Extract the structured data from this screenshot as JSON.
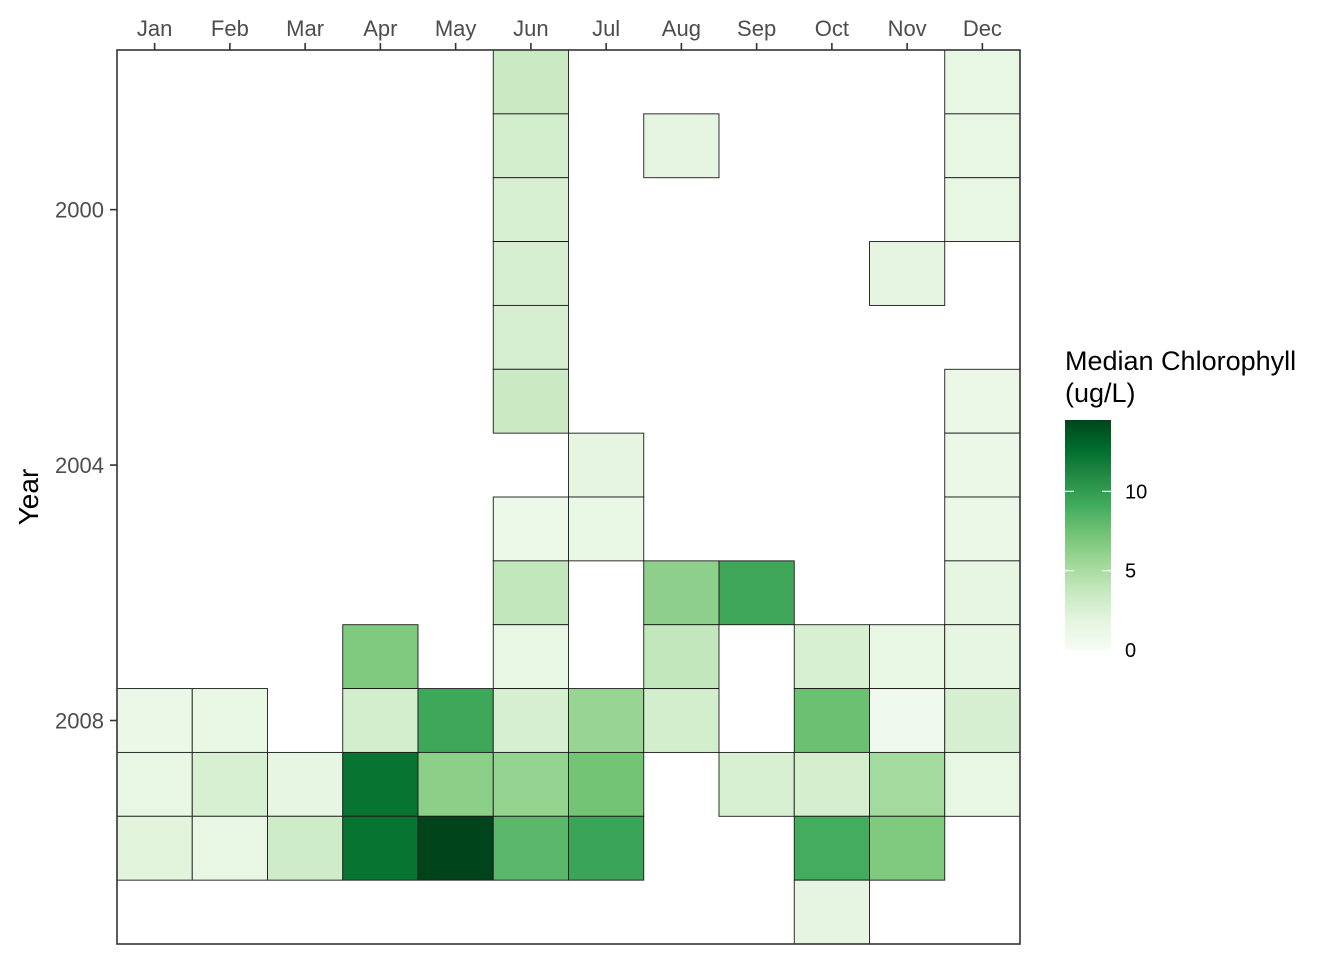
{
  "chart_data": {
    "type": "heatmap",
    "title": "",
    "xlabel": "",
    "ylabel": "Year",
    "x_axis_position": "top",
    "categories": [
      "Jan",
      "Feb",
      "Mar",
      "Apr",
      "May",
      "Jun",
      "Jul",
      "Aug",
      "Sep",
      "Oct",
      "Nov",
      "Dec"
    ],
    "y_range": [
      1997.5,
      2011.5
    ],
    "y_reversed": true,
    "y_ticks": [
      2000,
      2004,
      2008
    ],
    "grid": false,
    "legend": {
      "title_lines": [
        "Median Chlorophyll",
        "(ug/L)"
      ],
      "ticks": [
        0,
        5,
        10
      ],
      "range": [
        0,
        14.5
      ],
      "placement": "right",
      "low_color": "#f7fcf5",
      "high_color": "#00441b"
    },
    "colorscale": [
      {
        "v": 0,
        "c": "#f7fcf5"
      },
      {
        "v": 1.8,
        "c": "#e5f5e0"
      },
      {
        "v": 3.6,
        "c": "#c7e9c0"
      },
      {
        "v": 5.4,
        "c": "#a1d99b"
      },
      {
        "v": 7.3,
        "c": "#74c476"
      },
      {
        "v": 9.1,
        "c": "#41ab5d"
      },
      {
        "v": 10.9,
        "c": "#238b45"
      },
      {
        "v": 12.7,
        "c": "#006d2c"
      },
      {
        "v": 14.5,
        "c": "#00441b"
      }
    ],
    "cells": [
      {
        "month": "Jun",
        "year": 1998,
        "value": 3.5
      },
      {
        "month": "Dec",
        "year": 1998,
        "value": 1.5
      },
      {
        "month": "Jun",
        "year": 1999,
        "value": 2.9
      },
      {
        "month": "Aug",
        "year": 1999,
        "value": 1.7
      },
      {
        "month": "Dec",
        "year": 1999,
        "value": 1.5
      },
      {
        "month": "Jun",
        "year": 2000,
        "value": 2.6
      },
      {
        "month": "Dec",
        "year": 2000,
        "value": 1.5
      },
      {
        "month": "Jun",
        "year": 2001,
        "value": 2.7
      },
      {
        "month": "Nov",
        "year": 2001,
        "value": 1.8
      },
      {
        "month": "Jun",
        "year": 2002,
        "value": 2.7
      },
      {
        "month": "Jun",
        "year": 2003,
        "value": 3.4
      },
      {
        "month": "Dec",
        "year": 2003,
        "value": 1.2
      },
      {
        "month": "Jul",
        "year": 2004,
        "value": 1.8
      },
      {
        "month": "Dec",
        "year": 2004,
        "value": 1.2
      },
      {
        "month": "Jun",
        "year": 2005,
        "value": 1.1
      },
      {
        "month": "Jul",
        "year": 2005,
        "value": 1.4
      },
      {
        "month": "Dec",
        "year": 2005,
        "value": 1.2
      },
      {
        "month": "Jun",
        "year": 2006,
        "value": 3.8
      },
      {
        "month": "Aug",
        "year": 2006,
        "value": 6.2
      },
      {
        "month": "Sep",
        "year": 2006,
        "value": 9.3
      },
      {
        "month": "Dec",
        "year": 2006,
        "value": 1.6
      },
      {
        "month": "Apr",
        "year": 2007,
        "value": 6.8
      },
      {
        "month": "Jun",
        "year": 2007,
        "value": 1.5
      },
      {
        "month": "Aug",
        "year": 2007,
        "value": 3.8
      },
      {
        "month": "Oct",
        "year": 2007,
        "value": 2.6
      },
      {
        "month": "Nov",
        "year": 2007,
        "value": 1.5
      },
      {
        "month": "Dec",
        "year": 2007,
        "value": 1.6
      },
      {
        "month": "Jan",
        "year": 2008,
        "value": 1.2
      },
      {
        "month": "Feb",
        "year": 2008,
        "value": 1.4
      },
      {
        "month": "Apr",
        "year": 2008,
        "value": 2.9
      },
      {
        "month": "May",
        "year": 2008,
        "value": 9.3
      },
      {
        "month": "Jun",
        "year": 2008,
        "value": 2.7
      },
      {
        "month": "Jul",
        "year": 2008,
        "value": 5.8
      },
      {
        "month": "Aug",
        "year": 2008,
        "value": 2.9
      },
      {
        "month": "Oct",
        "year": 2008,
        "value": 7.6
      },
      {
        "month": "Nov",
        "year": 2008,
        "value": 0.7
      },
      {
        "month": "Dec",
        "year": 2008,
        "value": 2.7
      },
      {
        "month": "Jan",
        "year": 2009,
        "value": 1.5
      },
      {
        "month": "Feb",
        "year": 2009,
        "value": 2.6
      },
      {
        "month": "Mar",
        "year": 2009,
        "value": 1.6
      },
      {
        "month": "Apr",
        "year": 2009,
        "value": 12.3
      },
      {
        "month": "May",
        "year": 2009,
        "value": 6.3
      },
      {
        "month": "Jun",
        "year": 2009,
        "value": 5.9
      },
      {
        "month": "Jul",
        "year": 2009,
        "value": 7.3
      },
      {
        "month": "Sep",
        "year": 2009,
        "value": 2.6
      },
      {
        "month": "Oct",
        "year": 2009,
        "value": 2.8
      },
      {
        "month": "Nov",
        "year": 2009,
        "value": 5.3
      },
      {
        "month": "Dec",
        "year": 2009,
        "value": 1.5
      },
      {
        "month": "Jan",
        "year": 2010,
        "value": 2.0
      },
      {
        "month": "Feb",
        "year": 2010,
        "value": 1.5
      },
      {
        "month": "Mar",
        "year": 2010,
        "value": 3.1
      },
      {
        "month": "Apr",
        "year": 2010,
        "value": 12.3
      },
      {
        "month": "May",
        "year": 2010,
        "value": 14.5
      },
      {
        "month": "Jun",
        "year": 2010,
        "value": 8.2
      },
      {
        "month": "Jul",
        "year": 2010,
        "value": 9.5
      },
      {
        "month": "Oct",
        "year": 2010,
        "value": 9.0
      },
      {
        "month": "Nov",
        "year": 2010,
        "value": 6.8
      },
      {
        "month": "Oct",
        "year": 2011,
        "value": 1.7
      }
    ]
  }
}
